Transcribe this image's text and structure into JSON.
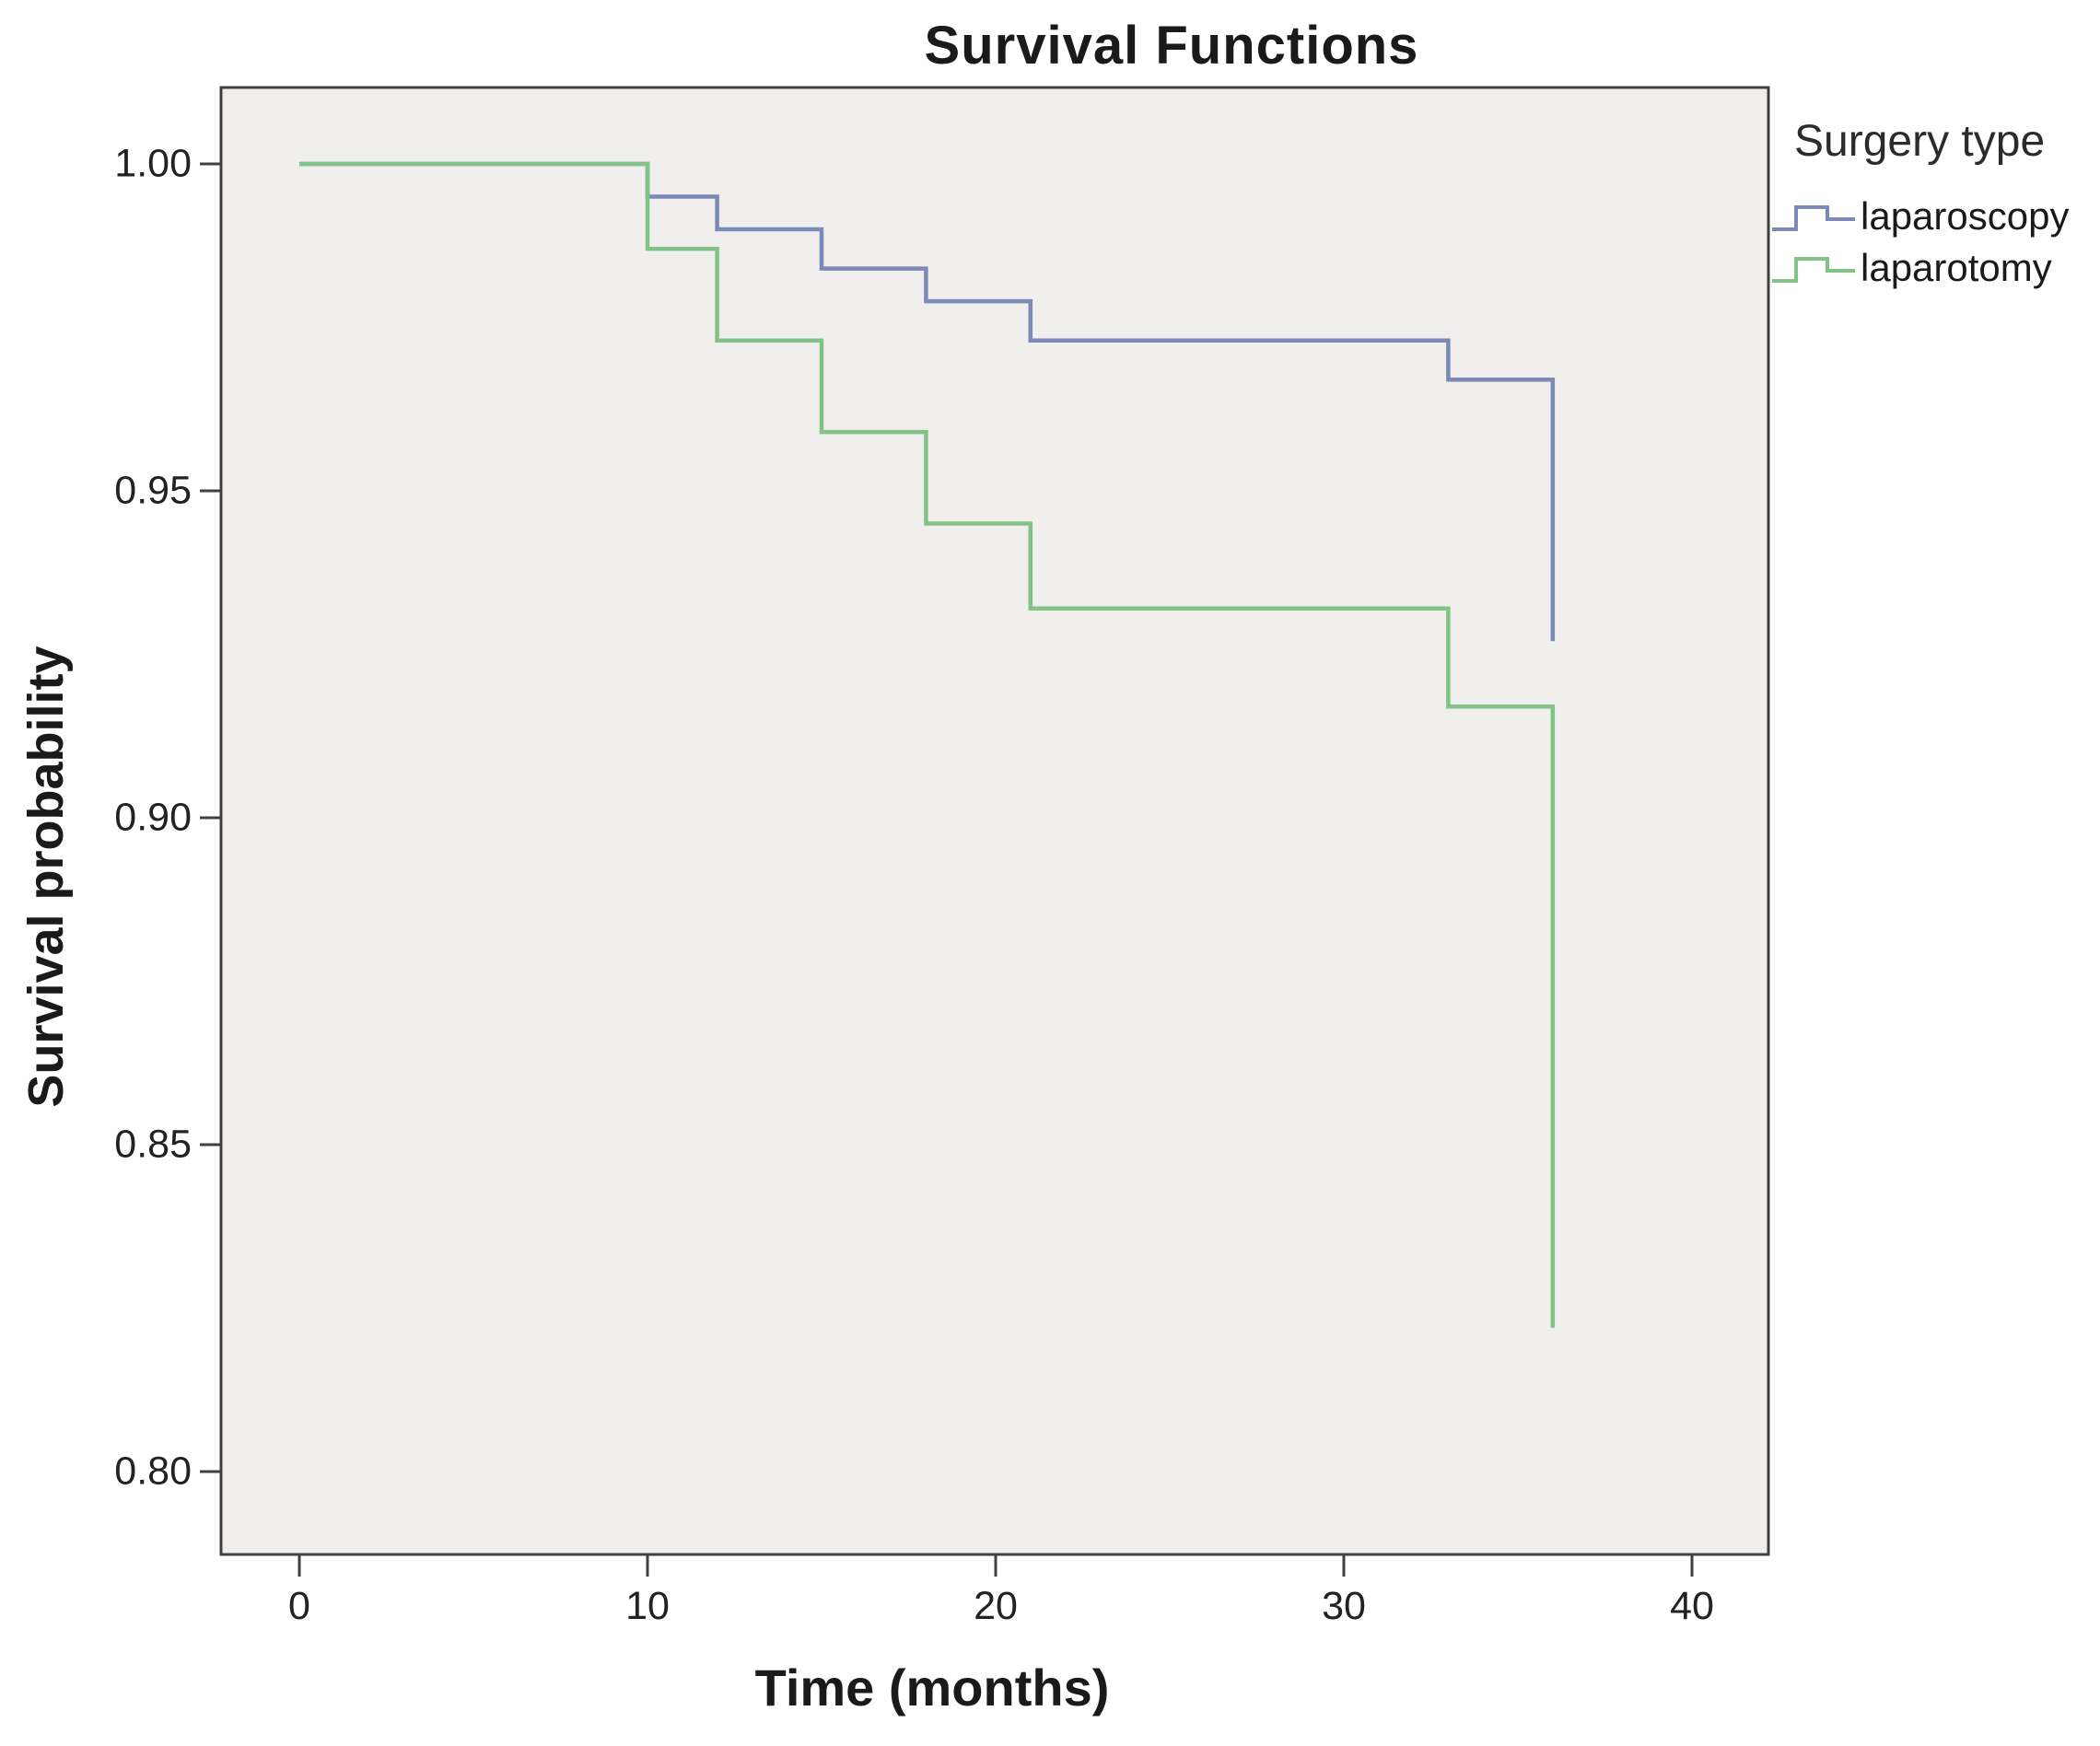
{
  "chart_data": {
    "type": "line",
    "subtype": "kaplan-meier-step",
    "title": "Survival Functions",
    "xlabel": "Time (months)",
    "ylabel": "Survival probability",
    "legend_title": "Surgery type",
    "legend_position": "right-top",
    "grid": false,
    "xlim": [
      0,
      40
    ],
    "ylim": [
      0.8,
      1.0
    ],
    "x_ticks": [
      {
        "v": 0,
        "label": "0"
      },
      {
        "v": 10,
        "label": "10"
      },
      {
        "v": 20,
        "label": "20"
      },
      {
        "v": 30,
        "label": "30"
      },
      {
        "v": 40,
        "label": "40"
      }
    ],
    "y_ticks": [
      {
        "v": 1.0,
        "label": "1.00"
      },
      {
        "v": 0.95,
        "label": "0.95"
      },
      {
        "v": 0.9,
        "label": "0.90"
      },
      {
        "v": 0.85,
        "label": "0.85"
      },
      {
        "v": 0.8,
        "label": "0.80"
      }
    ],
    "series": [
      {
        "name": "laparoscopy",
        "color": "#7b8ab6",
        "steps": [
          [
            0,
            1.0
          ],
          [
            10,
            0.995
          ],
          [
            12,
            0.99
          ],
          [
            15,
            0.984
          ],
          [
            18,
            0.979
          ],
          [
            21,
            0.973
          ],
          [
            33,
            0.967
          ],
          [
            36,
            0.927
          ]
        ]
      },
      {
        "name": "laparotomy",
        "color": "#83c286",
        "steps": [
          [
            0,
            1.0
          ],
          [
            10,
            0.987
          ],
          [
            12,
            0.973
          ],
          [
            15,
            0.959
          ],
          [
            18,
            0.945
          ],
          [
            21,
            0.932
          ],
          [
            33,
            0.917
          ],
          [
            36,
            0.822
          ]
        ]
      }
    ],
    "colors": {
      "plot_bg": "#f0efed",
      "frame": "#404040",
      "text": "#1a1a1a"
    }
  }
}
